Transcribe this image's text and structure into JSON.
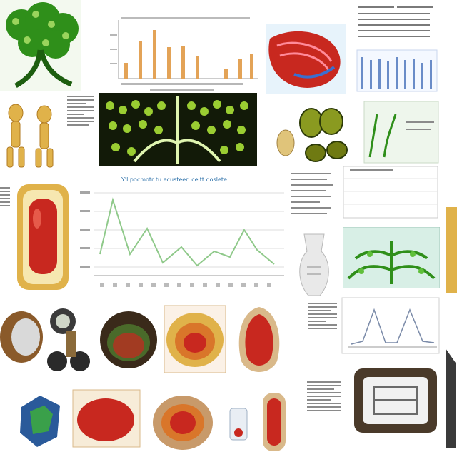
{
  "line_chart": {
    "title": "Y'l pocmotr tu ecusteeri celtt doslete"
  },
  "colors": {
    "leaf": "#2f8f1a",
    "leaf_dark": "#1d5e10",
    "bar": "#e3a357",
    "line": "#8fc98a",
    "blood_red": "#c8281f",
    "ochre": "#e0b24a",
    "chart_blue": "#6a8cc8"
  }
}
